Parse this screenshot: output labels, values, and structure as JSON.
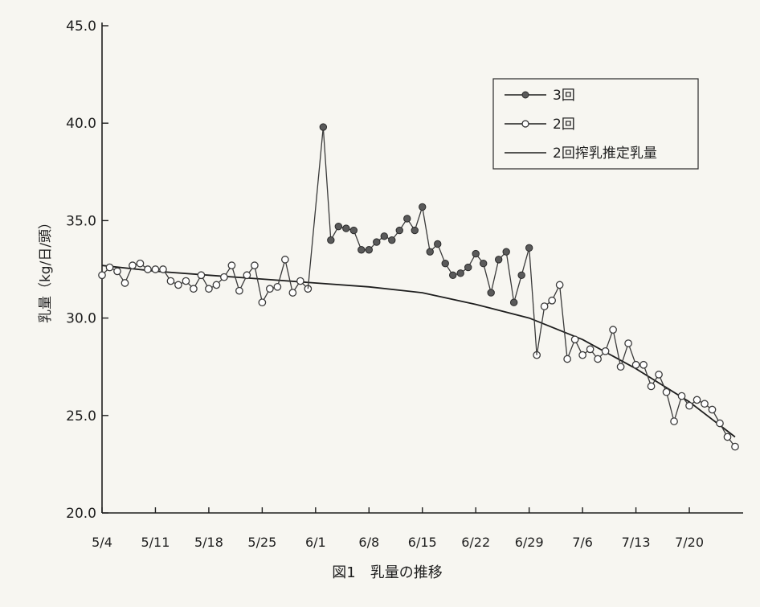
{
  "chart_data": {
    "type": "line",
    "ylabel": "乳量（kg/日/頭）",
    "caption": "図1　乳量の推移",
    "ylim": [
      20.0,
      45.0
    ],
    "yticks": [
      "45.0",
      "40.0",
      "35.0",
      "30.0",
      "25.0",
      "20.0"
    ],
    "ytick_values": [
      45,
      40,
      35,
      30,
      25,
      20
    ],
    "xlim": [
      0,
      83
    ],
    "xticks": [
      "5/4",
      "5/11",
      "5/18",
      "5/25",
      "6/1",
      "6/8",
      "6/15",
      "6/22",
      "6/29",
      "7/6",
      "7/13",
      "7/20"
    ],
    "xtick_values": [
      0,
      7,
      14,
      21,
      28,
      35,
      42,
      49,
      56,
      63,
      70,
      77
    ],
    "x_unit": "days since 5/4",
    "legend_position": "top-right",
    "series": [
      {
        "name": "3回",
        "style": "filled-marker",
        "color": "#3a3a3a",
        "points": [
          [
            29,
            39.8
          ],
          [
            30,
            34.0
          ],
          [
            31,
            34.7
          ],
          [
            32,
            34.6
          ],
          [
            33,
            34.5
          ],
          [
            34,
            33.5
          ],
          [
            35,
            33.5
          ],
          [
            36,
            33.9
          ],
          [
            37,
            34.2
          ],
          [
            38,
            34.0
          ],
          [
            39,
            34.5
          ],
          [
            40,
            35.1
          ],
          [
            41,
            34.5
          ],
          [
            42,
            35.7
          ],
          [
            43,
            33.4
          ],
          [
            44,
            33.8
          ],
          [
            45,
            32.8
          ],
          [
            46,
            32.2
          ],
          [
            47,
            32.3
          ],
          [
            48,
            32.6
          ],
          [
            49,
            33.3
          ],
          [
            50,
            32.8
          ],
          [
            51,
            31.3
          ],
          [
            52,
            33.0
          ],
          [
            53,
            33.4
          ],
          [
            54,
            30.8
          ],
          [
            55,
            32.2
          ],
          [
            56,
            33.6
          ]
        ]
      },
      {
        "name": "2回",
        "style": "open-marker",
        "color": "#3a3a3a",
        "points": [
          [
            0,
            32.2
          ],
          [
            1,
            32.6
          ],
          [
            2,
            32.4
          ],
          [
            3,
            31.8
          ],
          [
            4,
            32.7
          ],
          [
            5,
            32.8
          ],
          [
            6,
            32.5
          ],
          [
            7,
            32.5
          ],
          [
            8,
            32.5
          ],
          [
            9,
            31.9
          ],
          [
            10,
            31.7
          ],
          [
            11,
            31.9
          ],
          [
            12,
            31.5
          ],
          [
            13,
            32.2
          ],
          [
            14,
            31.5
          ],
          [
            15,
            31.7
          ],
          [
            16,
            32.1
          ],
          [
            17,
            32.7
          ],
          [
            18,
            31.4
          ],
          [
            19,
            32.2
          ],
          [
            20,
            32.7
          ],
          [
            21,
            30.8
          ],
          [
            22,
            31.5
          ],
          [
            23,
            31.6
          ],
          [
            24,
            33.0
          ],
          [
            25,
            31.3
          ],
          [
            26,
            31.9
          ],
          [
            27,
            31.5
          ],
          [
            57,
            28.1
          ],
          [
            58,
            30.6
          ],
          [
            59,
            30.9
          ],
          [
            60,
            31.7
          ],
          [
            61,
            27.9
          ],
          [
            62,
            28.9
          ],
          [
            63,
            28.1
          ],
          [
            64,
            28.4
          ],
          [
            65,
            27.9
          ],
          [
            66,
            28.3
          ],
          [
            67,
            29.4
          ],
          [
            68,
            27.5
          ],
          [
            69,
            28.7
          ],
          [
            70,
            27.6
          ],
          [
            71,
            27.6
          ],
          [
            72,
            26.5
          ],
          [
            73,
            27.1
          ],
          [
            74,
            26.2
          ],
          [
            75,
            24.7
          ],
          [
            76,
            26.0
          ],
          [
            77,
            25.5
          ],
          [
            78,
            25.8
          ],
          [
            79,
            25.6
          ],
          [
            80,
            25.3
          ],
          [
            81,
            24.6
          ],
          [
            82,
            23.9
          ],
          [
            83,
            23.4
          ]
        ]
      },
      {
        "name": "2回搾乳推定乳量",
        "style": "line",
        "color": "#1e1e1e",
        "points": [
          [
            0,
            32.7
          ],
          [
            7,
            32.4
          ],
          [
            14,
            32.2
          ],
          [
            21,
            32.0
          ],
          [
            28,
            31.8
          ],
          [
            35,
            31.6
          ],
          [
            42,
            31.3
          ],
          [
            49,
            30.7
          ],
          [
            56,
            30.0
          ],
          [
            63,
            28.9
          ],
          [
            70,
            27.4
          ],
          [
            77,
            25.7
          ],
          [
            83,
            23.9
          ]
        ]
      }
    ]
  }
}
